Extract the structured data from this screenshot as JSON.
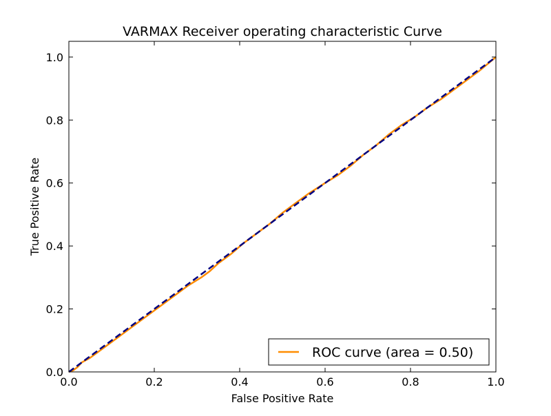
{
  "chart_data": {
    "type": "line",
    "title": "VARMAX Receiver operating characteristic Curve",
    "xlabel": "False Positive Rate",
    "ylabel": "True Positive Rate",
    "xlim": [
      0.0,
      1.0
    ],
    "ylim": [
      0.0,
      1.05
    ],
    "x_ticks": [
      0.0,
      0.2,
      0.4,
      0.6,
      0.8,
      1.0
    ],
    "y_ticks": [
      0.0,
      0.2,
      0.4,
      0.6,
      0.8,
      1.0
    ],
    "x_tick_labels": [
      "0.0",
      "0.2",
      "0.4",
      "0.6",
      "0.8",
      "1.0"
    ],
    "y_tick_labels": [
      "0.0",
      "0.2",
      "0.4",
      "0.6",
      "0.8",
      "1.0"
    ],
    "grid": false,
    "legend_position": "lower-right",
    "series": [
      {
        "name": "ROC curve (area = 0.50)",
        "color": "#ff8c00",
        "style": "solid",
        "x": [
          0.0,
          0.01,
          0.02,
          0.03,
          0.05,
          0.07,
          0.1,
          0.13,
          0.16,
          0.19,
          0.22,
          0.25,
          0.28,
          0.31,
          0.33,
          0.35,
          0.38,
          0.41,
          0.44,
          0.47,
          0.5,
          0.53,
          0.56,
          0.6,
          0.63,
          0.66,
          0.69,
          0.72,
          0.75,
          0.78,
          0.81,
          0.84,
          0.87,
          0.9,
          0.93,
          0.96,
          1.0
        ],
        "y": [
          0.0,
          0.005,
          0.015,
          0.03,
          0.045,
          0.065,
          0.095,
          0.125,
          0.155,
          0.185,
          0.215,
          0.245,
          0.275,
          0.3,
          0.32,
          0.345,
          0.375,
          0.41,
          0.44,
          0.47,
          0.505,
          0.535,
          0.565,
          0.6,
          0.625,
          0.655,
          0.69,
          0.72,
          0.755,
          0.785,
          0.81,
          0.84,
          0.865,
          0.895,
          0.925,
          0.955,
          1.0
        ]
      },
      {
        "name": "",
        "color": "#000080",
        "style": "dashed",
        "x": [
          0.0,
          1.0
        ],
        "y": [
          0.0,
          1.0
        ]
      }
    ],
    "legend_entries": [
      "ROC curve (area = 0.50)"
    ]
  }
}
